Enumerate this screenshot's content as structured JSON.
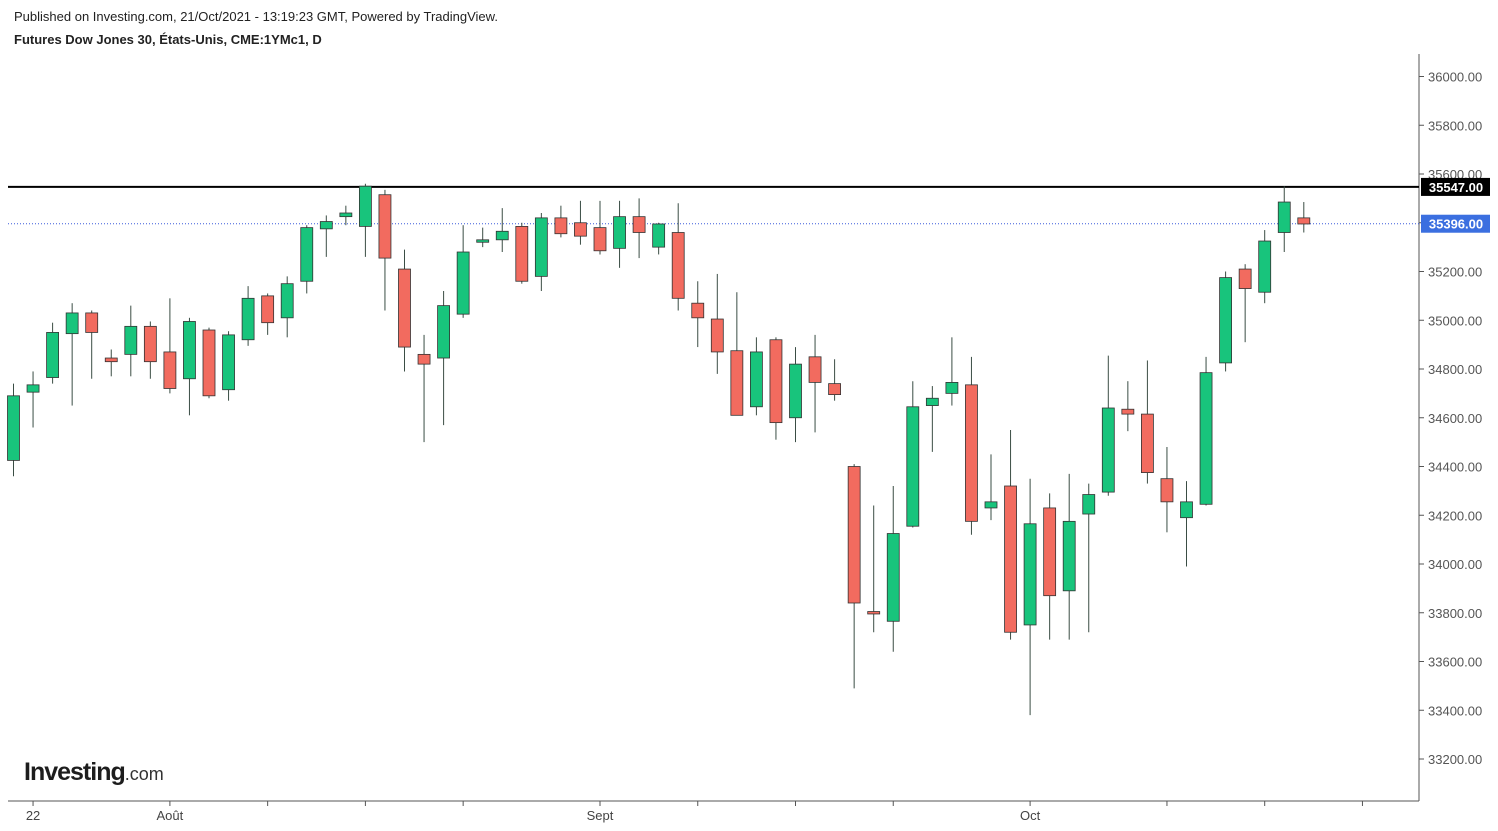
{
  "header": {
    "published": "Published on Investing.com, 21/Oct/2021 - 13:19:23 GMT, Powered by TradingView.",
    "instrument": "Futures Dow Jones 30, États-Unis, CME:1YMc1, D"
  },
  "logo": {
    "main": "Investing",
    "suffix": ".com"
  },
  "colors": {
    "up": "#18c47c",
    "down": "#f26b5f",
    "wick": "#3a4d44",
    "current_line": "#3b5bdb",
    "resistance": "#000000"
  },
  "chart_data": {
    "type": "candlestick",
    "ylim": [
      32950,
      36080
    ],
    "y_ticks": [
      "36000.00",
      "35800.00",
      "35600.00",
      "35400.00",
      "35200.00",
      "35000.00",
      "34800.00",
      "34600.00",
      "34400.00",
      "34200.00",
      "34000.00",
      "33800.00",
      "33600.00",
      "33400.00",
      "33200.00"
    ],
    "x_labels": [
      {
        "label": "22",
        "index": 1
      },
      {
        "label": "Août",
        "index": 8
      },
      {
        "label": "Sept",
        "index": 30
      },
      {
        "label": "Oct",
        "index": 52
      }
    ],
    "resistance": {
      "value": 35547,
      "label": "35547.00"
    },
    "current": {
      "value": 35396,
      "label": "35396.00"
    },
    "candles": [
      {
        "o": 34425,
        "h": 34740,
        "l": 34360,
        "c": 34690
      },
      {
        "o": 34705,
        "h": 34790,
        "l": 34560,
        "c": 34735
      },
      {
        "o": 34765,
        "h": 34990,
        "l": 34740,
        "c": 34950
      },
      {
        "o": 34945,
        "h": 35070,
        "l": 34650,
        "c": 35030
      },
      {
        "o": 35030,
        "h": 35040,
        "l": 34760,
        "c": 34950
      },
      {
        "o": 34845,
        "h": 34880,
        "l": 34770,
        "c": 34830
      },
      {
        "o": 34860,
        "h": 35060,
        "l": 34770,
        "c": 34975
      },
      {
        "o": 34975,
        "h": 34995,
        "l": 34760,
        "c": 34830
      },
      {
        "o": 34870,
        "h": 35090,
        "l": 34700,
        "c": 34720
      },
      {
        "o": 34760,
        "h": 35010,
        "l": 34610,
        "c": 34995
      },
      {
        "o": 34960,
        "h": 34970,
        "l": 34680,
        "c": 34690
      },
      {
        "o": 34715,
        "h": 34955,
        "l": 34670,
        "c": 34940
      },
      {
        "o": 34920,
        "h": 35140,
        "l": 34895,
        "c": 35090
      },
      {
        "o": 35100,
        "h": 35110,
        "l": 34940,
        "c": 34990
      },
      {
        "o": 35010,
        "h": 35180,
        "l": 34930,
        "c": 35150
      },
      {
        "o": 35160,
        "h": 35390,
        "l": 35110,
        "c": 35380
      },
      {
        "o": 35375,
        "h": 35430,
        "l": 35260,
        "c": 35405
      },
      {
        "o": 35425,
        "h": 35470,
        "l": 35390,
        "c": 35440
      },
      {
        "o": 35385,
        "h": 35560,
        "l": 35260,
        "c": 35550
      },
      {
        "o": 35515,
        "h": 35535,
        "l": 35040,
        "c": 35255
      },
      {
        "o": 35210,
        "h": 35290,
        "l": 34790,
        "c": 34890
      },
      {
        "o": 34860,
        "h": 34940,
        "l": 34500,
        "c": 34820
      },
      {
        "o": 34845,
        "h": 35120,
        "l": 34570,
        "c": 35060
      },
      {
        "o": 35025,
        "h": 35390,
        "l": 35010,
        "c": 35280
      },
      {
        "o": 35320,
        "h": 35380,
        "l": 35300,
        "c": 35330
      },
      {
        "o": 35330,
        "h": 35460,
        "l": 35280,
        "c": 35365
      },
      {
        "o": 35385,
        "h": 35400,
        "l": 35150,
        "c": 35160
      },
      {
        "o": 35180,
        "h": 35440,
        "l": 35120,
        "c": 35420
      },
      {
        "o": 35420,
        "h": 35470,
        "l": 35340,
        "c": 35355
      },
      {
        "o": 35400,
        "h": 35490,
        "l": 35310,
        "c": 35345
      },
      {
        "o": 35380,
        "h": 35490,
        "l": 35270,
        "c": 35285
      },
      {
        "o": 35295,
        "h": 35490,
        "l": 35215,
        "c": 35425
      },
      {
        "o": 35425,
        "h": 35500,
        "l": 35255,
        "c": 35360
      },
      {
        "o": 35300,
        "h": 35400,
        "l": 35270,
        "c": 35395
      },
      {
        "o": 35360,
        "h": 35480,
        "l": 35040,
        "c": 35090
      },
      {
        "o": 35070,
        "h": 35160,
        "l": 34890,
        "c": 35010
      },
      {
        "o": 35005,
        "h": 35190,
        "l": 34780,
        "c": 34870
      },
      {
        "o": 34875,
        "h": 35115,
        "l": 34610,
        "c": 34610
      },
      {
        "o": 34645,
        "h": 34930,
        "l": 34610,
        "c": 34870
      },
      {
        "o": 34920,
        "h": 34930,
        "l": 34510,
        "c": 34580
      },
      {
        "o": 34600,
        "h": 34890,
        "l": 34500,
        "c": 34820
      },
      {
        "o": 34850,
        "h": 34940,
        "l": 34540,
        "c": 34745
      },
      {
        "o": 34740,
        "h": 34840,
        "l": 34670,
        "c": 34695
      },
      {
        "o": 34400,
        "h": 34410,
        "l": 33490,
        "c": 33840
      },
      {
        "o": 33805,
        "h": 34240,
        "l": 33720,
        "c": 33795
      },
      {
        "o": 33765,
        "h": 34320,
        "l": 33640,
        "c": 34125
      },
      {
        "o": 34155,
        "h": 34750,
        "l": 34150,
        "c": 34645
      },
      {
        "o": 34650,
        "h": 34730,
        "l": 34460,
        "c": 34680
      },
      {
        "o": 34700,
        "h": 34930,
        "l": 34650,
        "c": 34745
      },
      {
        "o": 34735,
        "h": 34850,
        "l": 34120,
        "c": 34175
      },
      {
        "o": 34230,
        "h": 34450,
        "l": 34180,
        "c": 34255
      },
      {
        "o": 34320,
        "h": 34550,
        "l": 33690,
        "c": 33720
      },
      {
        "o": 33750,
        "h": 34350,
        "l": 33380,
        "c": 34165
      },
      {
        "o": 34230,
        "h": 34290,
        "l": 33690,
        "c": 33870
      },
      {
        "o": 33890,
        "h": 34370,
        "l": 33690,
        "c": 34175
      },
      {
        "o": 34205,
        "h": 34330,
        "l": 33720,
        "c": 34285
      },
      {
        "o": 34295,
        "h": 34855,
        "l": 34280,
        "c": 34640
      },
      {
        "o": 34635,
        "h": 34750,
        "l": 34545,
        "c": 34615
      },
      {
        "o": 34615,
        "h": 34835,
        "l": 34330,
        "c": 34375
      },
      {
        "o": 34350,
        "h": 34480,
        "l": 34130,
        "c": 34255
      },
      {
        "o": 34190,
        "h": 34340,
        "l": 33990,
        "c": 34255
      },
      {
        "o": 34245,
        "h": 34850,
        "l": 34240,
        "c": 34785
      },
      {
        "o": 34825,
        "h": 35200,
        "l": 34790,
        "c": 35175
      },
      {
        "o": 35210,
        "h": 35230,
        "l": 34910,
        "c": 35130
      },
      {
        "o": 35115,
        "h": 35370,
        "l": 35070,
        "c": 35325
      },
      {
        "o": 35360,
        "h": 35550,
        "l": 35280,
        "c": 35485
      },
      {
        "o": 35420,
        "h": 35485,
        "l": 35360,
        "c": 35395
      }
    ]
  }
}
